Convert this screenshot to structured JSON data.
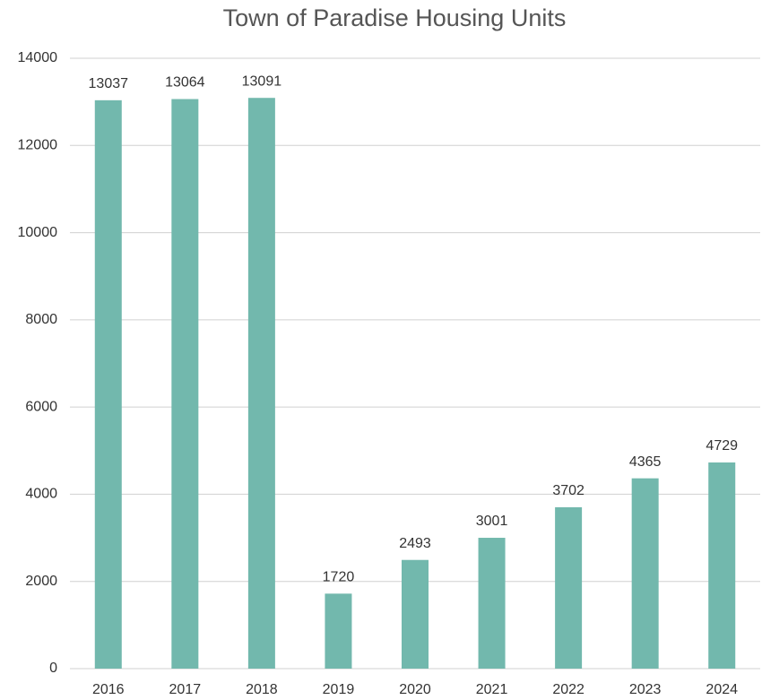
{
  "chart_data": {
    "type": "bar",
    "title": "Town of Paradise Housing Units",
    "categories": [
      "2016",
      "2017",
      "2018",
      "2019",
      "2020",
      "2021",
      "2022",
      "2023",
      "2024"
    ],
    "values": [
      13037,
      13064,
      13091,
      1720,
      2493,
      3001,
      3702,
      4365,
      4729
    ],
    "color": "#72b8ad",
    "ylim": [
      0,
      14000
    ],
    "yticks": [
      0,
      2000,
      4000,
      6000,
      8000,
      10000,
      12000,
      14000
    ],
    "grid": true
  }
}
